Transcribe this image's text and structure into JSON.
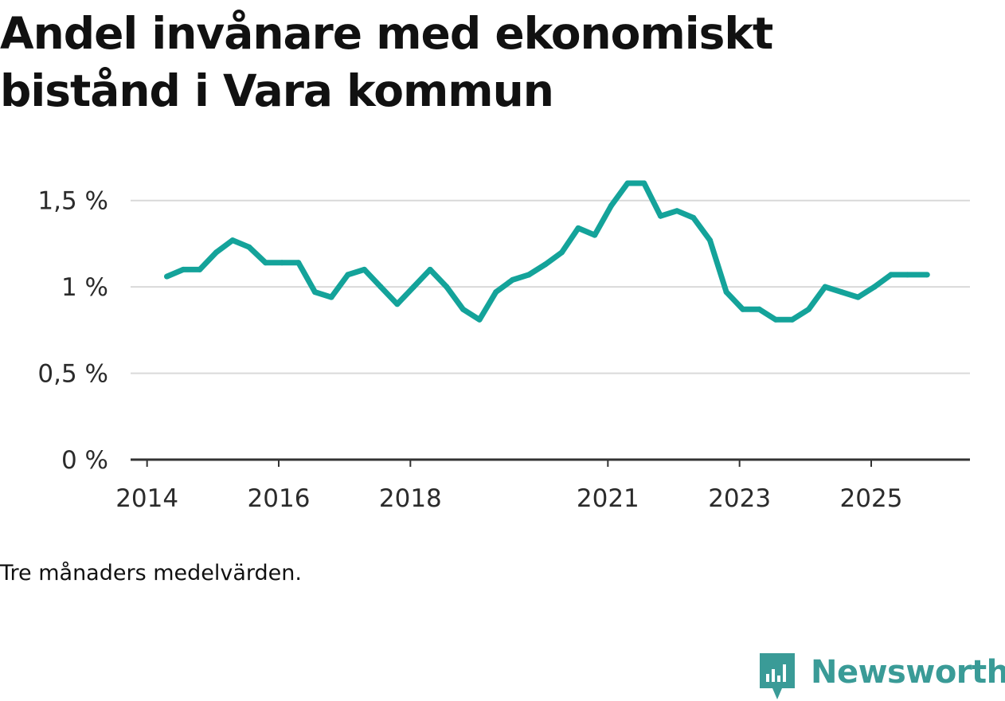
{
  "title": "Andel invånare med ekonomiskt bistånd i Vara kommun",
  "note": "Tre månaders medelvärden.",
  "brand": {
    "name": "Newsworthy",
    "icon": "newsworthy-logo-icon",
    "color": "#3a9b97"
  },
  "chart_data": {
    "type": "line",
    "title": "Andel invånare med ekonomiskt bistånd i Vara kommun",
    "xlabel": "",
    "ylabel": "",
    "ylim": [
      0,
      1.6
    ],
    "xlim": [
      2013.75,
      2026.5
    ],
    "grid": true,
    "y_ticks": [
      {
        "value": 0,
        "label": "0 %"
      },
      {
        "value": 0.5,
        "label": "0,5 %"
      },
      {
        "value": 1,
        "label": "1 %"
      },
      {
        "value": 1.5,
        "label": "1,5 %"
      }
    ],
    "x_ticks": [
      {
        "value": 2014,
        "label": "2014"
      },
      {
        "value": 2016,
        "label": "2016"
      },
      {
        "value": 2018,
        "label": "2018"
      },
      {
        "value": 2021,
        "label": "2021"
      },
      {
        "value": 2023,
        "label": "2023"
      },
      {
        "value": 2025,
        "label": "2025"
      }
    ],
    "series": [
      {
        "name": "Andel invånare med ekonomiskt bistånd",
        "color": "#14a39a",
        "x": [
          2014.3,
          2014.55,
          2014.8,
          2015.05,
          2015.3,
          2015.55,
          2015.8,
          2016.05,
          2016.3,
          2016.55,
          2016.8,
          2017.05,
          2017.3,
          2017.55,
          2017.8,
          2018.05,
          2018.3,
          2018.55,
          2018.8,
          2019.05,
          2019.3,
          2019.55,
          2019.8,
          2020.05,
          2020.3,
          2020.55,
          2020.8,
          2021.05,
          2021.3,
          2021.55,
          2021.8,
          2022.05,
          2022.3,
          2022.55,
          2022.8,
          2023.05,
          2023.3,
          2023.55,
          2023.8,
          2024.05,
          2024.3,
          2024.55,
          2024.8,
          2025.05,
          2025.3,
          2025.55,
          2025.85
        ],
        "values": [
          1.06,
          1.1,
          1.1,
          1.2,
          1.27,
          1.23,
          1.14,
          1.14,
          1.14,
          0.97,
          0.94,
          1.07,
          1.1,
          1.0,
          0.9,
          1.0,
          1.1,
          1.0,
          0.87,
          0.81,
          0.97,
          1.04,
          1.07,
          1.13,
          1.2,
          1.34,
          1.3,
          1.47,
          1.6,
          1.6,
          1.41,
          1.44,
          1.4,
          1.27,
          0.97,
          0.87,
          0.87,
          0.81,
          0.81,
          0.87,
          1.0,
          0.97,
          0.94,
          1.0,
          1.07,
          1.07,
          1.07
        ]
      }
    ]
  }
}
